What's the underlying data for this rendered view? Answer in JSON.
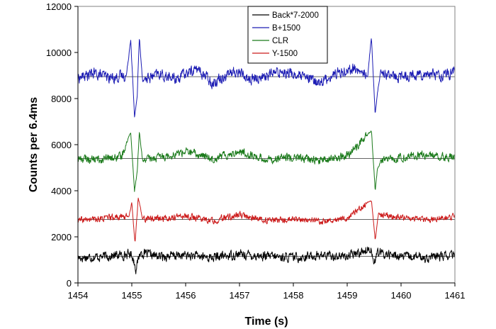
{
  "chart_data": {
    "type": "line",
    "title": "",
    "xlabel": "Time (s)",
    "ylabel": "Counts per 6.4ms",
    "xlim": [
      1454,
      1461
    ],
    "ylim": [
      0,
      12000
    ],
    "xticks": [
      "1454",
      "1455",
      "1456",
      "1457",
      "1458",
      "1459",
      "1460",
      "1461"
    ],
    "yticks": [
      "0",
      "2000",
      "4000",
      "6000",
      "8000",
      "10000",
      "12000"
    ],
    "grid": false,
    "legend_position": "top-center",
    "series": [
      {
        "name": "Back*7-2000",
        "color": "#000000",
        "baseline": 1150,
        "x": [
          1454.0,
          1454.5,
          1455.0,
          1455.08,
          1455.15,
          1455.5,
          1456.0,
          1456.5,
          1457.0,
          1457.5,
          1458.0,
          1458.5,
          1459.0,
          1459.45,
          1459.5,
          1459.55,
          1460.0,
          1460.5,
          1461.0
        ],
        "values": [
          1100,
          1150,
          1250,
          600,
          1300,
          1150,
          1200,
          1100,
          1250,
          1150,
          1100,
          1200,
          1150,
          1500,
          750,
          1300,
          1150,
          1100,
          1200
        ]
      },
      {
        "name": "B+1500",
        "color": "#1c1cb4",
        "baseline": 8950,
        "x": [
          1454.0,
          1454.3,
          1454.6,
          1454.9,
          1454.98,
          1455.05,
          1455.1,
          1455.14,
          1455.2,
          1455.5,
          1455.8,
          1456.2,
          1456.5,
          1456.8,
          1457.0,
          1457.2,
          1457.5,
          1457.8,
          1458.2,
          1458.5,
          1458.8,
          1459.1,
          1459.38,
          1459.45,
          1459.52,
          1459.56,
          1459.62,
          1459.9,
          1460.2,
          1460.5,
          1460.8,
          1461.0
        ],
        "values": [
          8900,
          9100,
          8900,
          9000,
          10600,
          7200,
          8100,
          10650,
          8800,
          9050,
          8850,
          9300,
          8700,
          9100,
          9150,
          8800,
          9000,
          9200,
          8900,
          8700,
          9100,
          9300,
          9000,
          10700,
          7300,
          8200,
          9200,
          8900,
          9050,
          9100,
          9000,
          9150
        ]
      },
      {
        "name": "CLR",
        "color": "#1a7a1a",
        "baseline": 5400,
        "x": [
          1454.0,
          1454.4,
          1454.8,
          1454.98,
          1455.05,
          1455.1,
          1455.14,
          1455.2,
          1455.6,
          1456.0,
          1456.5,
          1457.0,
          1457.5,
          1458.0,
          1458.5,
          1459.0,
          1459.45,
          1459.52,
          1459.56,
          1459.62,
          1460.0,
          1460.5,
          1461.0
        ],
        "values": [
          5400,
          5350,
          5450,
          6550,
          4000,
          4800,
          6550,
          5300,
          5500,
          5700,
          5400,
          5700,
          5350,
          5450,
          5300,
          5500,
          6600,
          4000,
          4900,
          5300,
          5450,
          5550,
          5450
        ]
      },
      {
        "name": "Y-1500",
        "color": "#cc1a1a",
        "baseline": 2750,
        "x": [
          1454.0,
          1454.5,
          1454.95,
          1455.0,
          1455.06,
          1455.12,
          1455.2,
          1455.6,
          1456.0,
          1456.5,
          1457.0,
          1457.5,
          1458.0,
          1458.5,
          1459.0,
          1459.45,
          1459.52,
          1459.58,
          1460.0,
          1460.5,
          1461.0
        ],
        "values": [
          2700,
          2800,
          2900,
          3500,
          1700,
          3700,
          2800,
          2800,
          2900,
          2700,
          2950,
          2700,
          2750,
          2700,
          2800,
          3600,
          1850,
          3000,
          2800,
          2750,
          2850
        ]
      }
    ]
  }
}
